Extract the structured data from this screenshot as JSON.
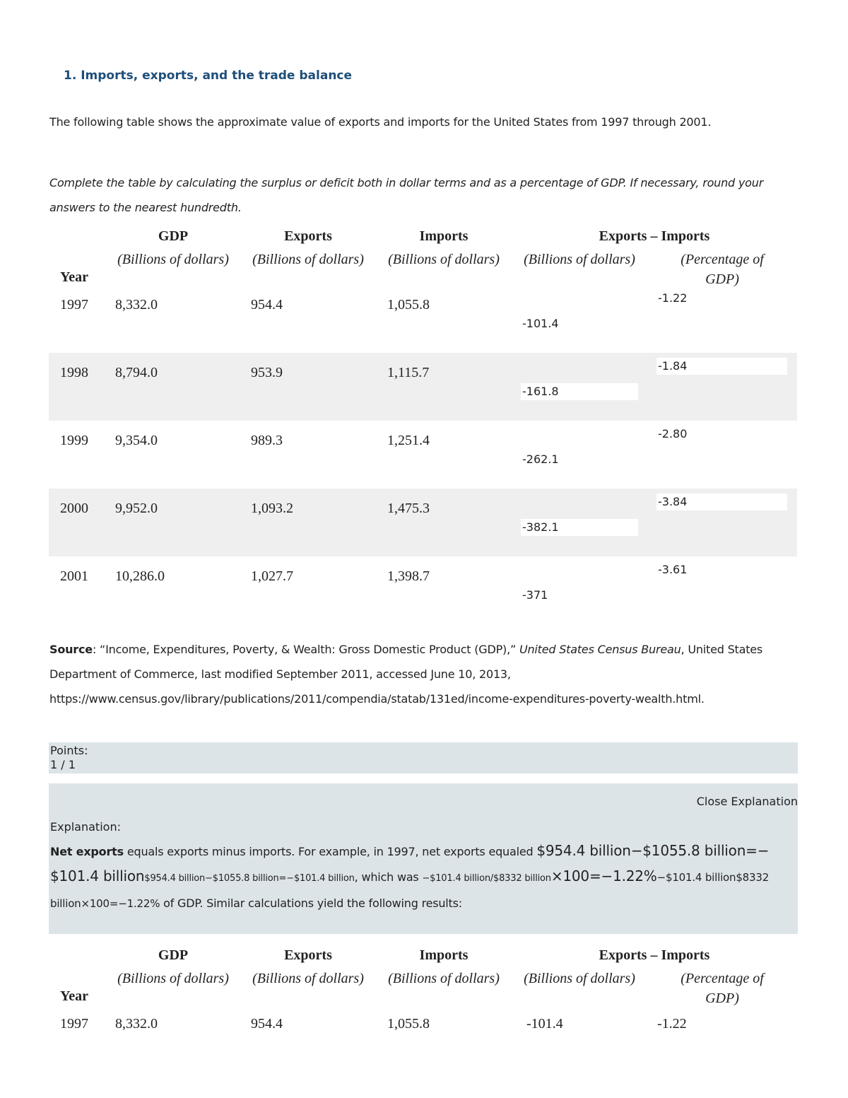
{
  "heading": "1. Imports, exports, and the trade balance",
  "intro": "The following table shows the approximate value of exports and imports for the United States from 1997 through 2001.",
  "instruction": "Complete the table by calculating the surplus or deficit both in dollar terms and as a percentage of GDP. If necessary, round your answers to the nearest hundredth.",
  "table": {
    "headers": {
      "year": "Year",
      "gdp": "GDP",
      "exports": "Exports",
      "imports": "Imports",
      "net": "Exports – Imports",
      "units": [
        "(Billions of dollars)",
        "(Billions of dollars)",
        "(Billions of dollars)",
        "(Billions of dollars)",
        "(Percentage of GDP)"
      ]
    },
    "rows": [
      [
        "1997",
        "8,332.0",
        "954.4",
        "1,055.8",
        "-101.4",
        "-1.22"
      ],
      [
        "1998",
        "8,794.0",
        "953.9",
        "1,115.7",
        "-161.8",
        "-1.84"
      ],
      [
        "1999",
        "9,354.0",
        "989.3",
        "1,251.4",
        "-262.1",
        "-2.80"
      ],
      [
        "2000",
        "9,952.0",
        "1,093.2",
        "1,475.3",
        "-382.1",
        "-3.84"
      ],
      [
        "2001",
        "10,286.0",
        "1,027.7",
        "1,398.7",
        "-371",
        "-3.61"
      ]
    ]
  },
  "source": {
    "label": "Source",
    "text1": ": “Income, Expenditures, Poverty, & Wealth: Gross Domestic Product (GDP),” ",
    "publisher": "United States Census Bureau",
    "text2": ", United States Department of Commerce, last modified September 2011, accessed June 10, 2013, https://www.census.gov/library/publications/2011/compendia/statab/131ed/income-expenditures-poverty-wealth.html."
  },
  "points": {
    "label": "Points:",
    "value": "1 / 1"
  },
  "explanation": {
    "close": "Close Explanation",
    "label": "Explanation:",
    "term": "Net exports",
    "text1": " equals exports minus imports. For example, in 1997, net exports equaled ",
    "math1": "$954.4 billion−$1055.8 billion=−$101.4 billion",
    "math1_alt": "$954.4 billion−$1055.8 billion=−$101.4 billion",
    "text2": ", which was ",
    "math2_frac": "−$101.4 billion/$8332 billion",
    "math2": "×100=−1.22%",
    "math2_alt": "−$101.4 billion$8332 billion×100=−1.22%",
    "text3": " of GDP. Similar calculations yield the following results:"
  },
  "result_table": {
    "headers": {
      "year": "Year",
      "gdp": "GDP",
      "exports": "Exports",
      "imports": "Imports",
      "net": "Exports – Imports",
      "units": [
        "(Billions of dollars)",
        "(Billions of dollars)",
        "(Billions of dollars)",
        "(Billions of dollars)",
        "(Percentage of GDP)"
      ]
    },
    "rows": [
      [
        "1997",
        "8,332.0",
        "954.4",
        "1,055.8",
        "-101.4",
        "-1.22"
      ]
    ]
  }
}
